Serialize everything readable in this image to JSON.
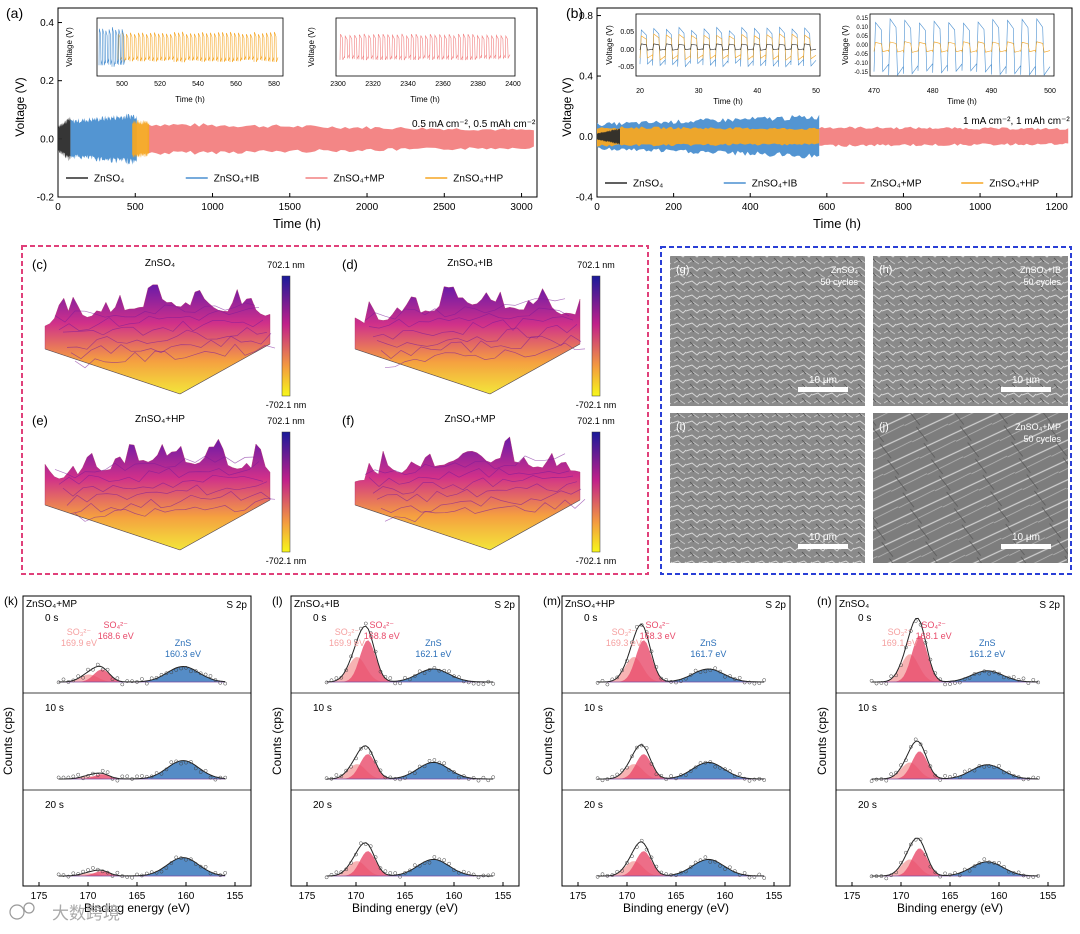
{
  "colors": {
    "ZnSO4": "#2b2b2b",
    "IB": "#4a8fd0",
    "MP": "#f28080",
    "HP": "#f5a623",
    "pinkBorder": "#e0407a",
    "blueBorder": "#2a3fd6",
    "so3": "#f5a0a0",
    "so4": "#e84a6a",
    "zns": "#2b6fb8"
  },
  "panel_a": {
    "letter": "(a)",
    "annotation": "0.5 mA cm⁻², 0.5 mAh cm⁻²",
    "inset1_ticks": [
      "500",
      "520",
      "540",
      "560",
      "580"
    ],
    "inset2_ticks": [
      "2300",
      "2320",
      "2340",
      "2360",
      "2380",
      "2400"
    ]
  },
  "panel_b": {
    "letter": "(b)",
    "annotation": "1 mA cm⁻², 1 mAh cm⁻²",
    "inset1_ticks": [
      "20",
      "30",
      "40",
      "50"
    ],
    "inset2_ticks": [
      "470",
      "480",
      "490",
      "500"
    ],
    "inset2_yticks": [
      "0.15",
      "0.10",
      "0.05",
      "0.00",
      "-0.05",
      "-0.10",
      "-0.15"
    ]
  },
  "inset_labels": {
    "x": "Time (h)",
    "y": "Voltage (V)"
  },
  "afm": {
    "panels": [
      {
        "letter": "(c)",
        "title": "ZnSO₄"
      },
      {
        "letter": "(d)",
        "title": "ZnSO₄+IB"
      },
      {
        "letter": "(e)",
        "title": "ZnSO₄+HP"
      },
      {
        "letter": "(f)",
        "title": "ZnSO₄+MP"
      }
    ],
    "scale_max": "702.1 nm",
    "scale_min": "-702.1 nm"
  },
  "sem": {
    "panels": [
      {
        "letter": "(g)",
        "label1": "ZnSO₄",
        "label2": "50 cycles"
      },
      {
        "letter": "(h)",
        "label1": "ZnSO₄+IB",
        "label2": "50 cycles"
      },
      {
        "letter": "(i)",
        "label1": "",
        "label2": ""
      },
      {
        "letter": "(j)",
        "label1": "ZnSO₄+MP",
        "label2": "50 cycles"
      }
    ],
    "scalebar": "10 μm"
  },
  "xps": {
    "xlabel": "Binding energy (eV)",
    "ylabel": "Counts (cps)",
    "orbital": "S 2p",
    "xticks": [
      "175",
      "170",
      "165",
      "160",
      "155"
    ],
    "times": [
      "0 s",
      "10 s",
      "20 s"
    ],
    "so3_label": "SO₃²⁻",
    "so4_label": "SO₄²⁻",
    "zns_label": "ZnS",
    "panels": [
      {
        "letter": "(k)",
        "name": "ZnSO₄+MP",
        "so3": "169.9 eV",
        "so4": "168.6 eV",
        "zns": "160.3 eV"
      },
      {
        "letter": "(l)",
        "name": "ZnSO₄+IB",
        "so3": "169.9 eV",
        "so4": "168.8 eV",
        "zns": "162.1 eV"
      },
      {
        "letter": "(m)",
        "name": "ZnSO₄+HP",
        "so3": "169.3 eV",
        "so4": "168.3 eV",
        "zns": "161.7 eV"
      },
      {
        "letter": "(n)",
        "name": "ZnSO₄",
        "so3": "169.1 eV",
        "so4": "168.1 eV",
        "zns": "161.2 eV"
      }
    ]
  },
  "watermark": "大数跨境",
  "chart_data": [
    {
      "type": "line",
      "xlabel": "Time (h)",
      "ylabel": "Voltage (V)",
      "xlim": [
        0,
        3100
      ],
      "ylim": [
        -0.2,
        0.45
      ],
      "xticks": [
        0,
        500,
        1000,
        1500,
        2000,
        2500,
        3000
      ],
      "yticks": [
        -0.2,
        0.0,
        0.2,
        0.4
      ],
      "series": [
        {
          "name": "ZnSO₄",
          "x_range": [
            0,
            80
          ],
          "amplitude": [
            0.04,
            0.07
          ]
        },
        {
          "name": "ZnSO₄+IB",
          "x_range": [
            80,
            510
          ],
          "amplitude": [
            0.06,
            0.08
          ]
        },
        {
          "name": "ZnSO₄+MP",
          "x_range": [
            580,
            3080
          ],
          "amplitude": [
            0.05,
            0.03
          ]
        },
        {
          "name": "ZnSO₄+HP",
          "x_range": [
            480,
            590
          ],
          "amplitude": [
            0.06,
            0.055
          ]
        }
      ]
    },
    {
      "type": "line",
      "xlabel": "Time (h)",
      "ylabel": "Voltage (V)",
      "xlim": [
        0,
        1240
      ],
      "ylim": [
        -0.4,
        0.85
      ],
      "xticks": [
        0,
        200,
        400,
        600,
        800,
        1000,
        1200
      ],
      "yticks": [
        -0.4,
        0.0,
        0.4,
        0.8
      ],
      "series": [
        {
          "name": "ZnSO₄",
          "x_range": [
            0,
            60
          ],
          "amplitude": [
            0.02,
            0.05
          ]
        },
        {
          "name": "ZnSO₄+IB",
          "x_range": [
            0,
            580
          ],
          "amplitude": [
            0.08,
            0.13
          ]
        },
        {
          "name": "ZnSO₄+MP",
          "x_range": [
            580,
            1230
          ],
          "amplitude": [
            0.06,
            0.05
          ]
        },
        {
          "name": "ZnSO₄+HP",
          "x_range": [
            0,
            580
          ],
          "amplitude": [
            0.06,
            0.05
          ]
        }
      ]
    }
  ]
}
